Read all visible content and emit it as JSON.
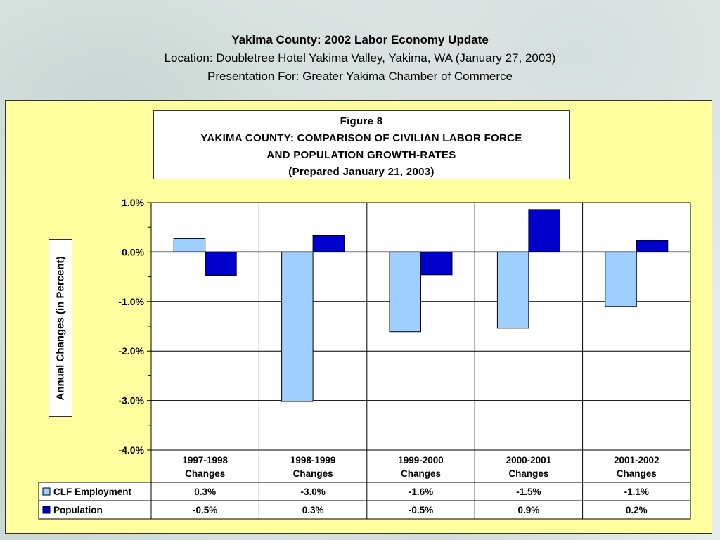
{
  "header": {
    "line1": "Yakima County: 2002 Labor Economy Update",
    "line2": "Location: Doubletree Hotel Yakima Valley, Yakima, WA (January 27, 2003)",
    "line3": "Presentation For: Greater Yakima Chamber of Commerce"
  },
  "colors": {
    "panel_bg": "#fefe9e",
    "clf": "#9fcfff",
    "population": "#0000cc"
  },
  "chart_data": {
    "type": "bar",
    "title": "Figure 8",
    "subtitle_lines": [
      "YAKIMA COUNTY: COMPARISON OF CIVILIAN LABOR FORCE",
      "AND POPULATION GROWTH-RATES",
      "(Prepared January 21, 2003)"
    ],
    "ylabel": "Annual Changes (in Percent)",
    "xlabel": "",
    "ylim": [
      -4.0,
      1.0
    ],
    "yticks": [
      "1.0%",
      "0.0%",
      "-1.0%",
      "-2.0%",
      "-3.0%",
      "-4.0%"
    ],
    "categories": [
      [
        "1997-1998",
        "Changes"
      ],
      [
        "1998-1999",
        "Changes"
      ],
      [
        "1999-2000",
        "Changes"
      ],
      [
        "2000-2001",
        "Changes"
      ],
      [
        "2001-2002",
        "Changes"
      ]
    ],
    "series": [
      {
        "name": "CLF Employment",
        "values": [
          0.27,
          -3.02,
          -1.61,
          -1.54,
          -1.1
        ],
        "labels": [
          "0.3%",
          "-3.0%",
          "-1.6%",
          "-1.5%",
          "-1.1%"
        ]
      },
      {
        "name": "Population",
        "values": [
          -0.47,
          0.34,
          -0.46,
          0.86,
          0.23
        ],
        "labels": [
          "-0.5%",
          "0.3%",
          "-0.5%",
          "0.9%",
          "0.2%"
        ]
      }
    ],
    "grid": true,
    "legend": "data-table"
  }
}
